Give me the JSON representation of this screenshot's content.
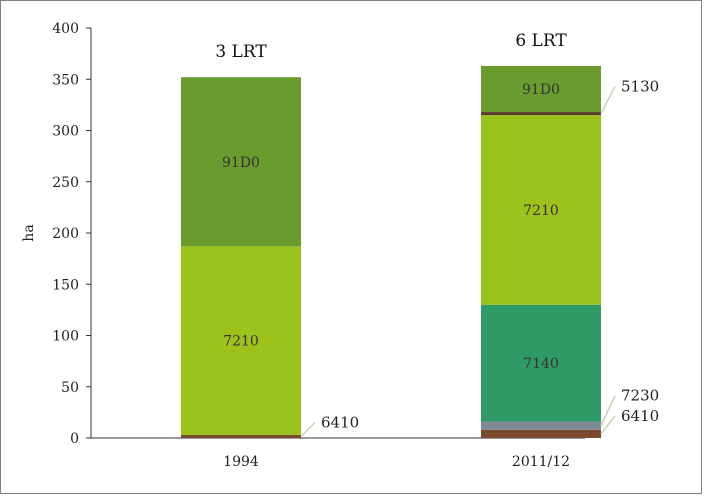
{
  "chart_data": {
    "type": "bar",
    "stacked": true,
    "ylabel": "ha",
    "ylim": [
      0,
      400
    ],
    "yticks": [
      0,
      50,
      100,
      150,
      200,
      250,
      300,
      350,
      400
    ],
    "categories": [
      "1994",
      "2011/12"
    ],
    "bar_titles": [
      "3 LRT",
      "6 LRT"
    ],
    "grid": false,
    "bars": [
      {
        "category": "1994",
        "title": "3 LRT",
        "segments": [
          {
            "code": "6410",
            "value": 3,
            "color": "#7a4a2e",
            "label": "",
            "callout": "6410"
          },
          {
            "code": "7210",
            "value": 184,
            "color": "#9cc31c",
            "label": "7210",
            "callout": ""
          },
          {
            "code": "91D0",
            "value": 165,
            "color": "#699b2f",
            "label": "91D0",
            "callout": ""
          }
        ]
      },
      {
        "category": "2011/12",
        "title": "6 LRT",
        "segments": [
          {
            "code": "6410",
            "value": 8,
            "color": "#7a4a2e",
            "label": "",
            "callout": "6410"
          },
          {
            "code": "7230",
            "value": 8,
            "color": "#7f8a96",
            "label": "",
            "callout": "7230"
          },
          {
            "code": "7140",
            "value": 114,
            "color": "#2f9a66",
            "label": "7140",
            "callout": ""
          },
          {
            "code": "7210",
            "value": 185,
            "color": "#9cc31c",
            "label": "7210",
            "callout": ""
          },
          {
            "code": "5130",
            "value": 3,
            "color": "#5a3a2a",
            "label": "",
            "callout": "5130"
          },
          {
            "code": "91D0",
            "value": 45,
            "color": "#699b2f",
            "label": "91D0",
            "callout": ""
          }
        ]
      }
    ]
  }
}
